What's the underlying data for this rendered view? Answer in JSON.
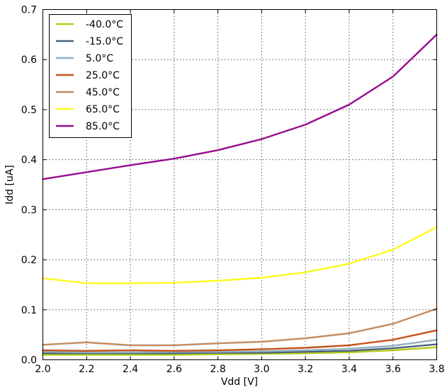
{
  "chart_data": {
    "type": "line",
    "xlabel": "Vdd [V]",
    "ylabel": "Idd [uA]",
    "xlim": [
      2.0,
      3.8
    ],
    "ylim": [
      0.0,
      0.7
    ],
    "x_ticks": [
      "2.0",
      "2.2",
      "2.4",
      "2.6",
      "2.8",
      "3.0",
      "3.2",
      "3.4",
      "3.6",
      "3.8"
    ],
    "y_ticks": [
      "0.0",
      "0.1",
      "0.2",
      "0.3",
      "0.4",
      "0.5",
      "0.6",
      "0.7"
    ],
    "grid": true,
    "legend_position": "top-left",
    "x": [
      2.0,
      2.2,
      2.4,
      2.6,
      2.8,
      3.0,
      3.2,
      3.4,
      3.6,
      3.8
    ],
    "series": [
      {
        "name": "-40.0°C",
        "color": "#b5cc18",
        "values": [
          0.01,
          0.01,
          0.01,
          0.01,
          0.011,
          0.012,
          0.013,
          0.015,
          0.019,
          0.025
        ]
      },
      {
        "name": "-15.0°C",
        "color": "#4a6378",
        "values": [
          0.013,
          0.013,
          0.013,
          0.013,
          0.014,
          0.014,
          0.016,
          0.018,
          0.023,
          0.031
        ]
      },
      {
        "name": "5.0°C",
        "color": "#92afc5",
        "values": [
          0.016,
          0.015,
          0.015,
          0.016,
          0.016,
          0.017,
          0.019,
          0.022,
          0.028,
          0.04
        ]
      },
      {
        "name": "25.0°C",
        "color": "#c8531a",
        "values": [
          0.019,
          0.018,
          0.019,
          0.018,
          0.019,
          0.021,
          0.024,
          0.029,
          0.04,
          0.059
        ]
      },
      {
        "name": "45.0°C",
        "color": "#c08c63",
        "values": [
          0.03,
          0.035,
          0.029,
          0.029,
          0.033,
          0.036,
          0.043,
          0.053,
          0.072,
          0.102
        ]
      },
      {
        "name": "65.0°C",
        "color": "#fbfb1f",
        "values": [
          0.163,
          0.153,
          0.153,
          0.154,
          0.158,
          0.164,
          0.175,
          0.192,
          0.22,
          0.265
        ]
      },
      {
        "name": "85.0°C",
        "color": "#950e8f",
        "values": [
          0.361,
          0.375,
          0.389,
          0.402,
          0.419,
          0.441,
          0.47,
          0.51,
          0.566,
          0.65
        ]
      }
    ]
  }
}
